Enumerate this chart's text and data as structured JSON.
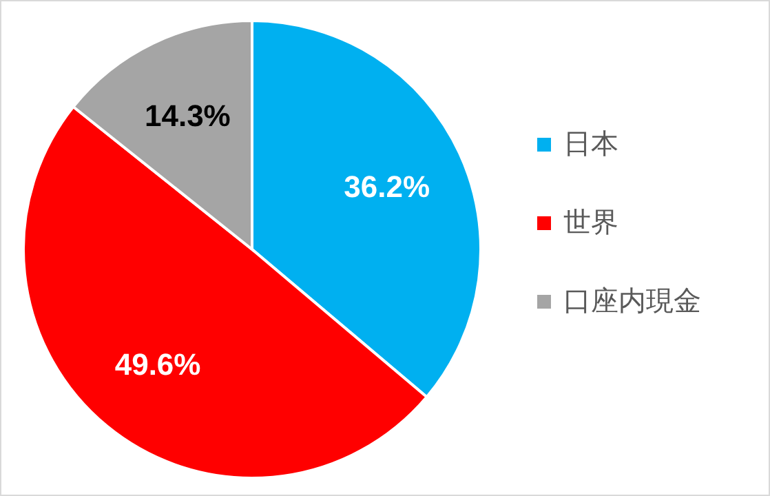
{
  "chart_data": {
    "type": "pie",
    "categories": [
      "日本",
      "世界",
      "口座内現金"
    ],
    "values": [
      36.2,
      49.6,
      14.3
    ],
    "value_labels": [
      "36.2%",
      "49.6%",
      "14.3%"
    ],
    "colors": [
      "#00b0f0",
      "#ff0000",
      "#a5a5a5"
    ],
    "legend": "right"
  }
}
